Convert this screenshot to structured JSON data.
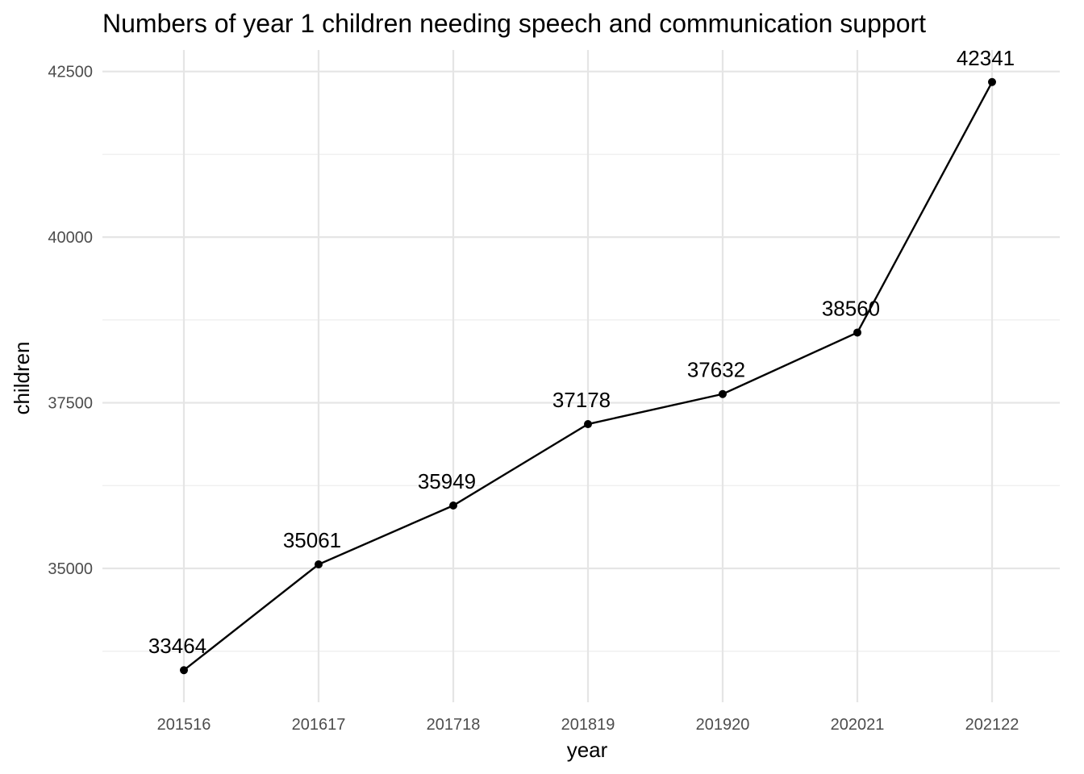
{
  "chart_data": {
    "type": "line",
    "title": "Numbers of year 1 children needing speech and communication support",
    "xlabel": "year",
    "ylabel": "children",
    "categories": [
      "201516",
      "201617",
      "201718",
      "201819",
      "201920",
      "202021",
      "202122"
    ],
    "values": [
      33464,
      35061,
      35949,
      37178,
      37632,
      38560,
      42341
    ],
    "y_ticks": [
      35000,
      37500,
      40000,
      42500
    ],
    "ylim": [
      32980,
      42825
    ],
    "grid": true,
    "legend": "none",
    "line_color": "#000000",
    "grid_color": "#e5e5e5"
  }
}
